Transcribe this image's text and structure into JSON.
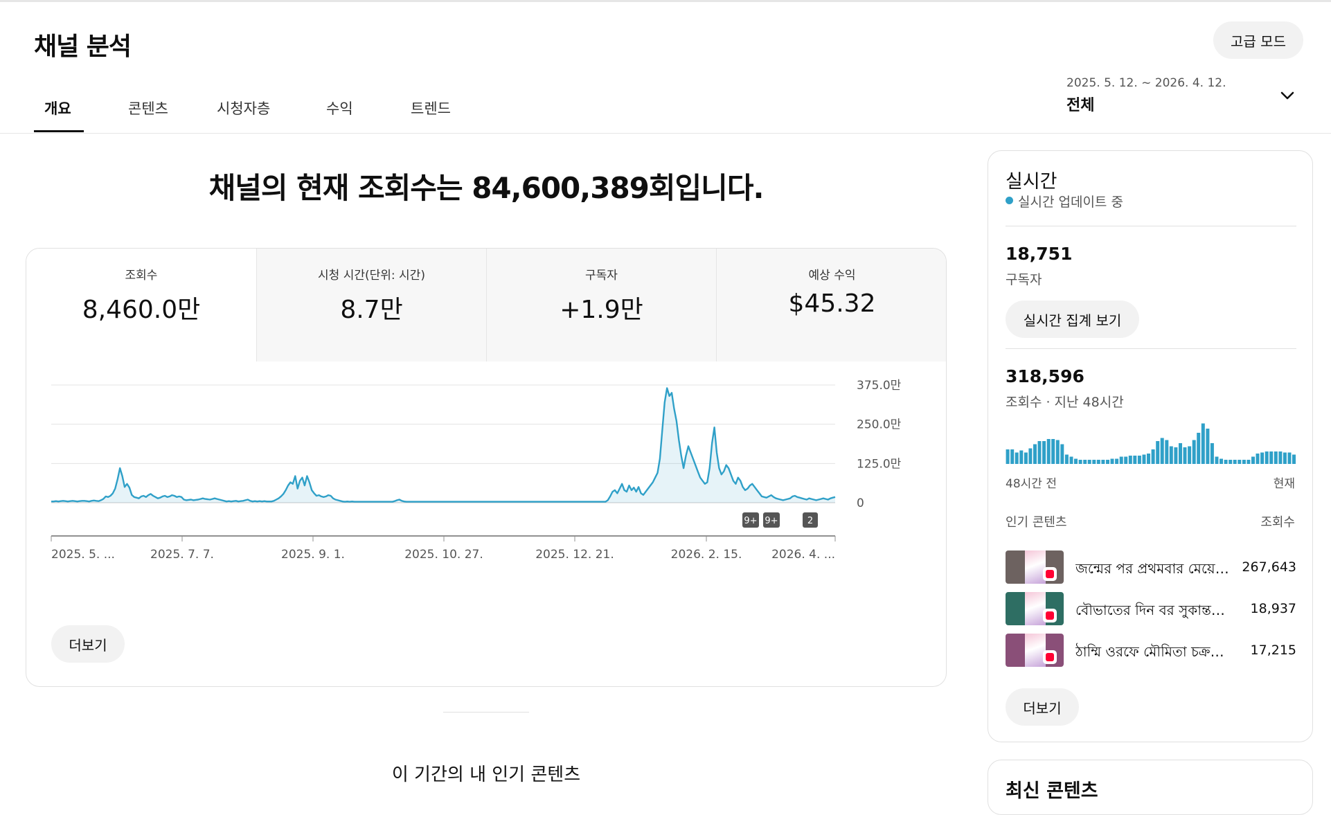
{
  "header": {
    "title": "채널 분석",
    "advanced_mode": "고급 모드",
    "tabs": [
      "개요",
      "콘텐츠",
      "시청자층",
      "수익",
      "트렌드"
    ],
    "date_range": "2025. 5. 12. ~ 2026. 4. 12.",
    "date_label": "전체"
  },
  "main": {
    "headline": "채널의 현재 조회수는 84,600,389회입니다.",
    "metrics": [
      {
        "label": "조회수",
        "value": "8,460.0만"
      },
      {
        "label": "시청 시간(단위: 시간)",
        "value": "8.7만"
      },
      {
        "label": "구독자",
        "value": "+1.9만"
      },
      {
        "label": "예상 수익",
        "value": "$45.32"
      }
    ],
    "more_button": "더보기",
    "top_content_title": "이 기간의 내 인기 콘텐츠"
  },
  "chart_data": {
    "type": "area",
    "x_ticks": [
      "2025. 5. ...",
      "2025. 7. 7.",
      "2025. 9. 1.",
      "2025. 10. 27.",
      "2025. 12. 21.",
      "2026. 2. 15.",
      "2026. 4. ..."
    ],
    "y_ticks": [
      "375.0만",
      "250.0만",
      "125.0만",
      "0"
    ],
    "ylim": [
      0,
      375
    ],
    "y_unit": "만",
    "markers": [
      "9+",
      "9+",
      "2"
    ],
    "color": "#2fa0c8",
    "grid": true,
    "values": [
      4,
      4,
      5,
      4,
      5,
      6,
      5,
      4,
      5,
      6,
      5,
      4,
      5,
      6,
      6,
      5,
      4,
      6,
      7,
      6,
      5,
      8,
      12,
      20,
      18,
      22,
      30,
      45,
      75,
      110,
      85,
      50,
      60,
      48,
      25,
      18,
      16,
      14,
      20,
      22,
      18,
      24,
      28,
      22,
      18,
      14,
      16,
      20,
      22,
      18,
      20,
      24,
      22,
      18,
      20,
      18,
      10,
      8,
      9,
      10,
      8,
      9,
      10,
      12,
      14,
      12,
      11,
      10,
      12,
      14,
      12,
      10,
      8,
      6,
      4,
      5,
      4,
      5,
      6,
      4,
      5,
      6,
      8,
      10,
      6,
      4,
      5,
      4,
      5,
      4,
      5,
      4,
      4,
      4,
      6,
      10,
      14,
      20,
      28,
      40,
      55,
      65,
      60,
      85,
      45,
      70,
      80,
      55,
      85,
      65,
      40,
      30,
      22,
      24,
      20,
      18,
      20,
      24,
      22,
      14,
      10,
      8,
      6,
      4,
      3,
      4,
      3,
      4,
      3,
      3,
      3,
      3,
      3,
      3,
      3,
      3,
      3,
      3,
      3,
      3,
      3,
      3,
      3,
      3,
      3,
      5,
      8,
      10,
      6,
      4,
      3,
      3,
      3,
      3,
      3,
      3,
      3,
      3,
      3,
      3,
      3,
      3,
      3,
      3,
      3,
      3,
      3,
      3,
      3,
      3,
      3,
      3,
      3,
      3,
      3,
      3,
      3,
      3,
      3,
      3,
      3,
      3,
      3,
      3,
      3,
      3,
      3,
      3,
      3,
      3,
      3,
      3,
      3,
      3,
      3,
      3,
      3,
      3,
      3,
      3,
      3,
      3,
      3,
      3,
      3,
      3,
      3,
      3,
      3,
      3,
      3,
      3,
      3,
      3,
      3,
      3,
      3,
      3,
      3,
      3,
      3,
      3,
      3,
      3,
      3,
      3,
      3,
      3,
      3,
      3,
      3,
      3,
      3,
      3,
      3,
      8,
      20,
      35,
      40,
      30,
      45,
      60,
      40,
      35,
      55,
      40,
      48,
      35,
      50,
      30,
      25,
      35,
      45,
      55,
      65,
      80,
      95,
      140,
      230,
      320,
      365,
      340,
      350,
      300,
      260,
      200,
      150,
      110,
      150,
      180,
      160,
      140,
      120,
      100,
      80,
      70,
      60,
      65,
      110,
      190,
      240,
      160,
      110,
      90,
      100,
      120,
      110,
      90,
      70,
      60,
      80,
      70,
      50,
      40,
      45,
      55,
      60,
      50,
      40,
      30,
      20,
      18,
      16,
      20,
      24,
      18,
      14,
      12,
      10,
      8,
      10,
      12,
      14,
      20,
      22,
      18,
      16,
      14,
      12,
      10,
      14,
      12,
      10,
      8,
      10,
      12,
      14,
      12,
      10,
      14,
      16,
      18
    ]
  },
  "sidebar": {
    "title": "실시간",
    "live_text": "실시간 업데이트 중",
    "subscribers_value": "18,751",
    "subscribers_label": "구독자",
    "realtime_button": "실시간 집계 보기",
    "views_value": "318,596",
    "views_label": "조회수 · 지난 48시간",
    "bars": [
      14,
      14,
      11,
      13,
      11,
      15,
      19,
      22,
      22,
      24,
      24,
      23,
      19,
      9,
      7,
      5,
      4,
      4,
      4,
      4,
      4,
      4,
      4,
      5,
      5,
      7,
      7,
      8,
      8,
      8,
      9,
      10,
      14,
      22,
      25,
      23,
      17,
      16,
      20,
      16,
      17,
      23,
      30,
      39,
      34,
      20,
      7,
      5,
      4,
      4,
      4,
      4,
      4,
      4,
      7,
      10,
      11,
      12,
      12,
      12,
      12,
      11,
      11,
      9
    ],
    "axis_left": "48시간 전",
    "axis_right": "현재",
    "top_head_left": "인기 콘텐츠",
    "top_head_right": "조회수",
    "top_items": [
      {
        "title": "জন্মের পর প্রথমবার মেয়ের মুখ",
        "views": "267,643",
        "color": "#6d6260"
      },
      {
        "title": "বৌভাতের দিন বর সুকান্ত রায়",
        "views": "18,937",
        "color": "#2e6e63"
      },
      {
        "title": "ঠাম্মি ওরফে মৌমিতা চক্রবর্তী",
        "views": "17,215",
        "color": "#8a4f78"
      }
    ],
    "more_button": "더보기",
    "latest_title": "최신 콘텐츠"
  }
}
